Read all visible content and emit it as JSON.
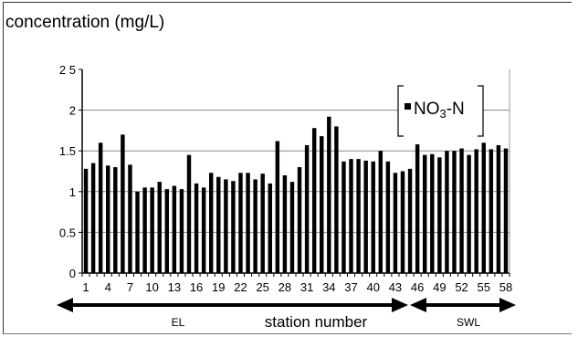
{
  "chart_data": {
    "type": "bar",
    "title": "",
    "ylabel": "concentration (mg/L)",
    "xlabel": "station number",
    "ylim": [
      0,
      2.5
    ],
    "yticks": [
      "0",
      "0.5",
      "1",
      "1.5",
      "2",
      "2 5"
    ],
    "grid": true,
    "legend_position": "top-right",
    "x_tick_labels": [
      "1",
      "4",
      "7",
      "10",
      "13",
      "16",
      "19",
      "22",
      "25",
      "28",
      "31",
      "34",
      "37",
      "40",
      "43",
      "46",
      "49",
      "52",
      "55",
      "58"
    ],
    "categories": [
      1,
      2,
      3,
      4,
      5,
      6,
      7,
      8,
      9,
      10,
      11,
      12,
      13,
      14,
      15,
      16,
      17,
      18,
      19,
      20,
      21,
      22,
      23,
      24,
      25,
      26,
      27,
      28,
      29,
      30,
      31,
      32,
      33,
      34,
      35,
      36,
      37,
      38,
      39,
      40,
      41,
      42,
      43,
      44,
      45,
      46,
      47,
      48,
      49,
      50,
      51,
      52,
      53,
      54,
      55,
      56,
      57,
      58
    ],
    "series": [
      {
        "name": "NO3-N",
        "values": [
          1.28,
          1.35,
          1.6,
          1.32,
          1.3,
          1.7,
          1.33,
          1.0,
          1.05,
          1.05,
          1.12,
          1.03,
          1.07,
          1.03,
          1.45,
          1.1,
          1.05,
          1.23,
          1.18,
          1.15,
          1.13,
          1.23,
          1.23,
          1.15,
          1.22,
          1.1,
          1.62,
          1.2,
          1.12,
          1.3,
          1.57,
          1.78,
          1.68,
          1.92,
          1.8,
          1.37,
          1.4,
          1.4,
          1.38,
          1.37,
          1.5,
          1.37,
          1.23,
          1.25,
          1.28,
          1.58,
          1.45,
          1.46,
          1.42,
          1.5,
          1.5,
          1.53,
          1.45,
          1.52,
          1.6,
          1.52,
          1.57,
          1.53
        ]
      }
    ],
    "legend": {
      "prefix": "NO",
      "subscript": "3",
      "suffix": "-N"
    },
    "groups": [
      {
        "label": "EL",
        "from": 1,
        "to": 45
      },
      {
        "label": "SWL",
        "from": 45,
        "to": 58
      }
    ]
  }
}
